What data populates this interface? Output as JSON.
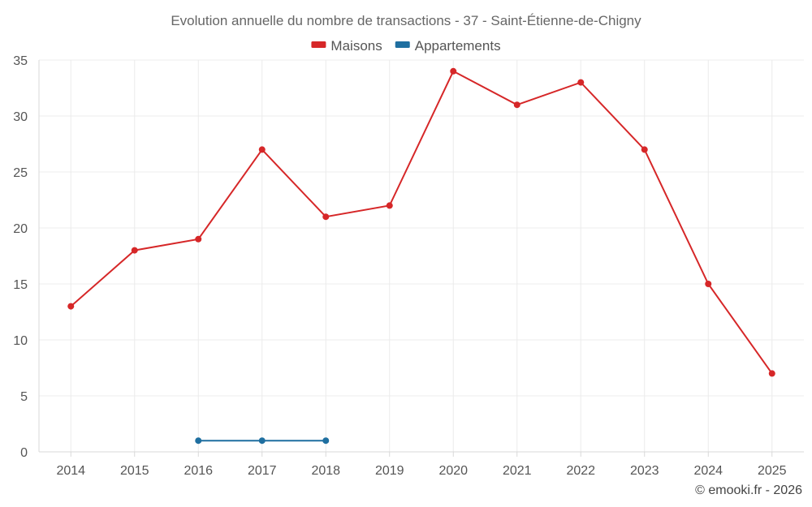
{
  "chart_data": {
    "type": "line",
    "title": "Evolution annuelle du nombre de transactions - 37 - Saint-Étienne-de-Chigny",
    "categories": [
      "2014",
      "2015",
      "2016",
      "2017",
      "2018",
      "2019",
      "2020",
      "2021",
      "2022",
      "2023",
      "2024",
      "2025"
    ],
    "series": [
      {
        "name": "Maisons",
        "color": "#d62728",
        "values": [
          13,
          18,
          19,
          27,
          21,
          22,
          34,
          31,
          33,
          27,
          15,
          7
        ]
      },
      {
        "name": "Appartements",
        "color": "#1f6fa0",
        "values": [
          null,
          null,
          1,
          1,
          1,
          null,
          null,
          null,
          null,
          null,
          null,
          null
        ]
      }
    ],
    "ylim": [
      0,
      35
    ],
    "yticks": [
      0,
      5,
      10,
      15,
      20,
      25,
      30,
      35
    ],
    "grid": true,
    "legend_position": "top-center",
    "credit": "© emooki.fr - 2026"
  }
}
